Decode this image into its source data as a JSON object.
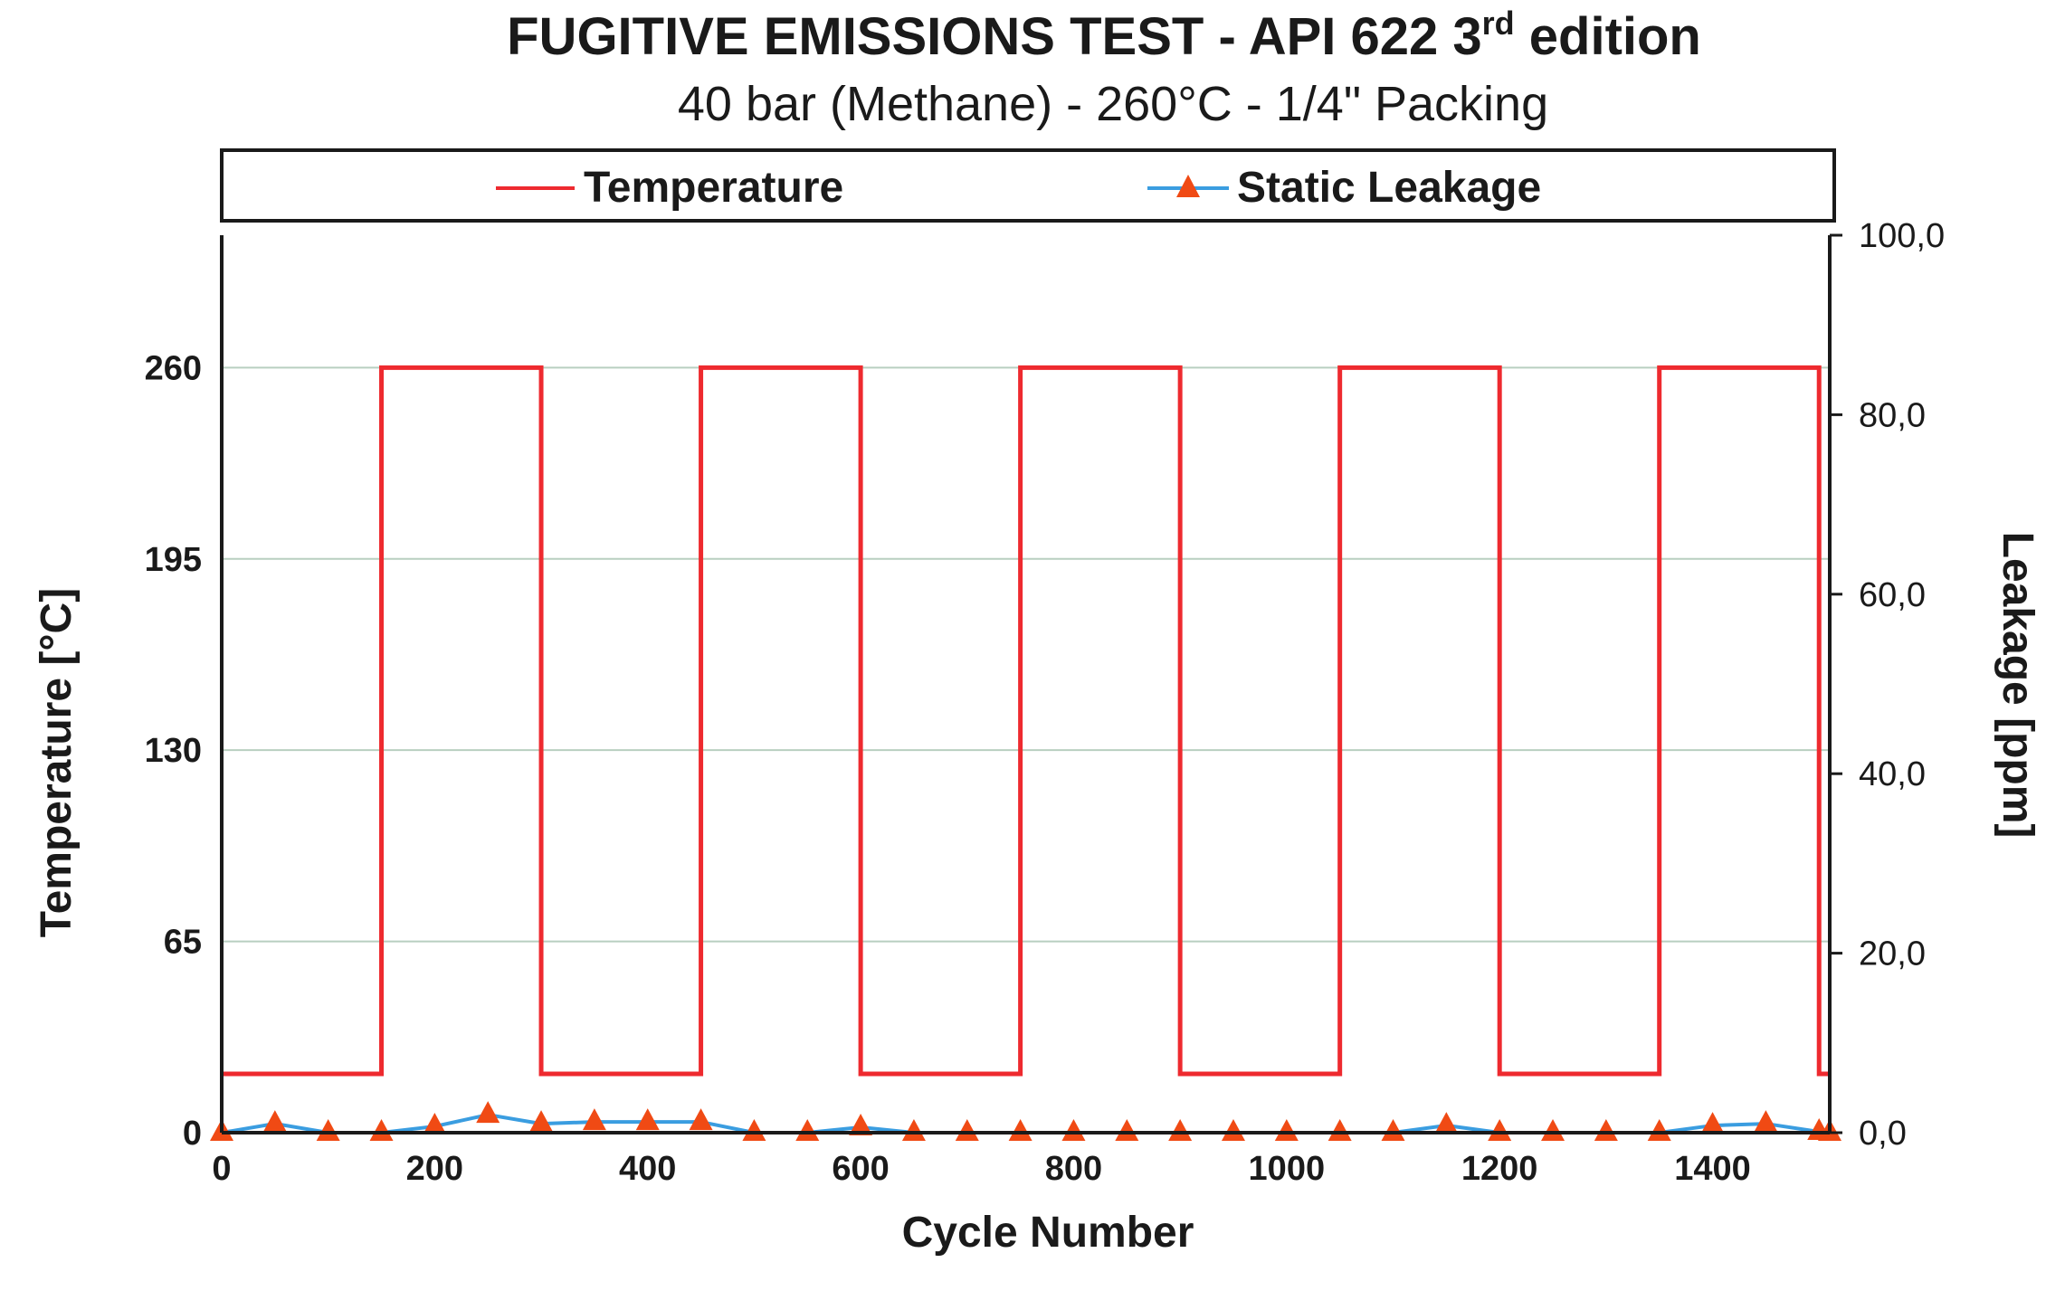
{
  "chart_data": {
    "type": "line",
    "title": "FUGITIVE EMISSIONS TEST - API 622 3",
    "title_superscript": "rd",
    "title_suffix": " edition",
    "subtitle": "40 bar (Methane) - 260°C - 1/4\" Packing",
    "xlabel": "Cycle Number",
    "ylabel_left": "Temperature [°C]",
    "ylabel_right": "Leakage [ppm]",
    "xlim": [
      0,
      1510
    ],
    "ylim_left": [
      0,
      305
    ],
    "ylim_right": [
      0,
      100
    ],
    "x_ticks": [
      "0",
      "200",
      "400",
      "600",
      "800",
      "1000",
      "1200",
      "1400"
    ],
    "x_tick_values": [
      0,
      200,
      400,
      600,
      800,
      1000,
      1200,
      1400
    ],
    "y_left_ticks": [
      "0",
      "65",
      "130",
      "195",
      "260"
    ],
    "y_left_tick_values": [
      0,
      65,
      130,
      195,
      260
    ],
    "y_right_ticks": [
      "0,0",
      "20,0",
      "40,0",
      "60,0",
      "80,0",
      "100,0"
    ],
    "y_right_tick_values": [
      0,
      20,
      40,
      60,
      80,
      100
    ],
    "grid": true,
    "legend_position": "top",
    "series": [
      {
        "name": "Temperature",
        "axis": "left",
        "color": "#ee2a2f",
        "x": [
          0,
          150,
          150,
          300,
          300,
          450,
          450,
          600,
          600,
          750,
          750,
          900,
          900,
          1050,
          1050,
          1200,
          1200,
          1350,
          1350,
          1500,
          1500,
          1510
        ],
        "y": [
          20,
          20,
          260,
          260,
          20,
          20,
          260,
          260,
          20,
          20,
          260,
          260,
          20,
          20,
          260,
          260,
          20,
          20,
          260,
          260,
          20,
          20
        ]
      },
      {
        "name": "Static Leakage",
        "axis": "right",
        "color": "#3a9de0",
        "marker_color": "#f04a14",
        "x": [
          0,
          50,
          100,
          150,
          200,
          250,
          300,
          350,
          400,
          450,
          500,
          550,
          600,
          650,
          700,
          750,
          800,
          850,
          900,
          950,
          1000,
          1050,
          1100,
          1150,
          1200,
          1250,
          1300,
          1350,
          1400,
          1450,
          1500,
          1510
        ],
        "y": [
          0,
          1,
          0,
          0,
          0.7,
          2,
          1,
          1.2,
          1.2,
          1.2,
          0,
          0,
          0.6,
          0,
          0,
          0,
          0,
          0,
          0,
          0,
          0,
          0,
          0,
          0.8,
          0,
          0,
          0,
          0,
          0.8,
          1,
          0.1,
          0
        ]
      }
    ]
  }
}
